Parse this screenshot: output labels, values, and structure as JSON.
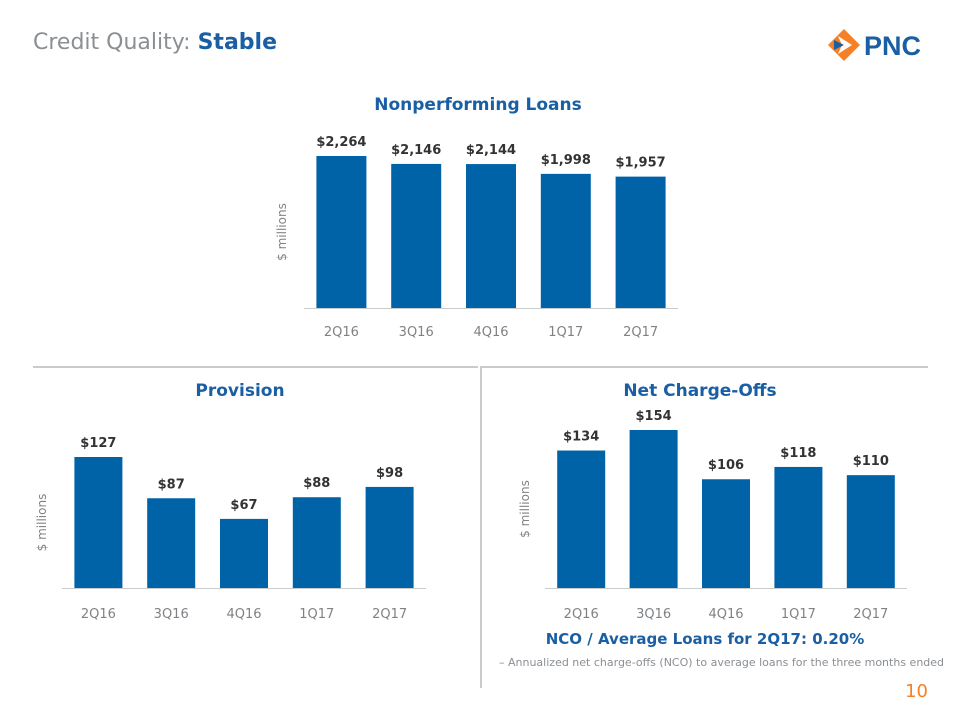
{
  "page": {
    "title_prefix": "Credit Quality: ",
    "title_emphasis": "Stable",
    "logo_text": "PNC",
    "page_number": "10"
  },
  "colors": {
    "bar": "#0063a8",
    "title_blue": "#1a5fa3",
    "label_gray": "#7f8285",
    "value_dark": "#333333",
    "axis_gray": "#c9cbcd",
    "accent_orange": "#f58025"
  },
  "chart_data": [
    {
      "id": "npl",
      "type": "bar",
      "title": "Nonperforming Loans",
      "ylabel": "$ millions",
      "xlabel": "",
      "categories": [
        "2Q16",
        "3Q16",
        "4Q16",
        "1Q17",
        "2Q17"
      ],
      "values": [
        2264,
        2146,
        2144,
        1998,
        1957
      ],
      "value_labels": [
        "$2,264",
        "$2,146",
        "$2,144",
        "$1,998",
        "$1,957"
      ],
      "ylim": [
        0,
        2264
      ],
      "grid": false
    },
    {
      "id": "provision",
      "type": "bar",
      "title": "Provision",
      "ylabel": "$ millions",
      "xlabel": "",
      "categories": [
        "2Q16",
        "3Q16",
        "4Q16",
        "1Q17",
        "2Q17"
      ],
      "values": [
        127,
        87,
        67,
        88,
        98
      ],
      "value_labels": [
        "$127",
        "$87",
        "$67",
        "$88",
        "$98"
      ],
      "ylim": [
        0,
        127
      ],
      "grid": false
    },
    {
      "id": "nco",
      "type": "bar",
      "title": "Net Charge-Offs",
      "ylabel": "$ millions",
      "xlabel": "",
      "categories": [
        "2Q16",
        "3Q16",
        "4Q16",
        "1Q17",
        "2Q17"
      ],
      "values": [
        134,
        154,
        106,
        118,
        110
      ],
      "value_labels": [
        "$134",
        "$154",
        "$106",
        "$118",
        "$110"
      ],
      "ylim": [
        0,
        154
      ],
      "grid": false
    }
  ],
  "nco_ratio": {
    "label": "NCO / Average Loans for 2Q17: 0.20%",
    "footnote": "–  Annualized net charge-offs (NCO) to average loans for the three months ended"
  }
}
